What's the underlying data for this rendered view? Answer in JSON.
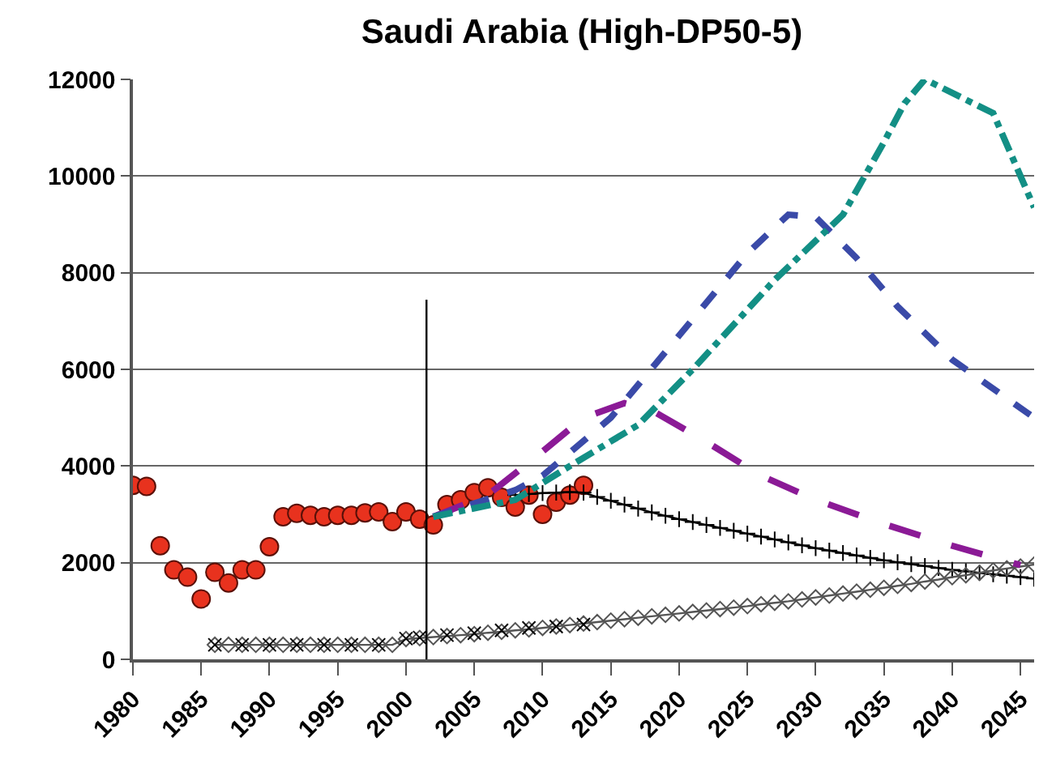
{
  "chart_data": {
    "type": "line",
    "title": "Saudi Arabia (High-DP50-5)",
    "xlim": [
      1980,
      2046
    ],
    "xticks": [
      1980,
      1985,
      1990,
      1995,
      2000,
      2005,
      2010,
      2015,
      2020,
      2025,
      2030,
      2035,
      2040,
      2045
    ],
    "ylim": [
      0,
      12000
    ],
    "yticks": [
      0,
      2000,
      4000,
      6000,
      8000,
      10000,
      12000
    ],
    "grid": "y",
    "ref_lines": [
      {
        "axis": "x",
        "value": 2001.5,
        "color": "#000000"
      }
    ],
    "series": [
      {
        "type": "scatter",
        "marker": "circle",
        "color": "#e8321e",
        "x": [
          1980,
          1981,
          1982,
          1983,
          1984,
          1985,
          1986,
          1987,
          1988,
          1989,
          1990,
          1991,
          1992,
          1993,
          1994,
          1995,
          1996,
          1997,
          1998,
          1999,
          2000,
          2001,
          2002,
          2003,
          2004,
          2005,
          2006,
          2007,
          2008,
          2009,
          2010,
          2011,
          2012,
          2013
        ],
        "values": [
          3600,
          3580,
          2350,
          1850,
          1700,
          1250,
          1800,
          1580,
          1850,
          1850,
          2330,
          2950,
          3020,
          2980,
          2950,
          2980,
          2980,
          3030,
          3050,
          2850,
          3050,
          2900,
          2780,
          3200,
          3300,
          3450,
          3550,
          3350,
          3150,
          3400,
          3000,
          3250,
          3400,
          3600
        ]
      },
      {
        "marker": "cross",
        "line_style": "solid",
        "color": "#000000",
        "x": [
          2008,
          2009,
          2010,
          2011,
          2012,
          2013,
          2014,
          2015,
          2016,
          2017,
          2018,
          2019,
          2020,
          2021,
          2022,
          2023,
          2024,
          2025,
          2026,
          2027,
          2028,
          2029,
          2030,
          2031,
          2032,
          2033,
          2034,
          2035,
          2036,
          2037,
          2038,
          2039,
          2040,
          2041,
          2042,
          2043,
          2044,
          2045,
          2046
        ],
        "values": [
          3400,
          3420,
          3440,
          3450,
          3460,
          3450,
          3360,
          3280,
          3200,
          3120,
          3040,
          2970,
          2900,
          2840,
          2780,
          2720,
          2660,
          2600,
          2540,
          2480,
          2420,
          2360,
          2300,
          2250,
          2200,
          2150,
          2100,
          2050,
          2010,
          1970,
          1930,
          1890,
          1850,
          1820,
          1790,
          1760,
          1730,
          1700,
          1670
        ]
      },
      {
        "marker": "diamond",
        "line_style": "solid",
        "color": "#555555",
        "x": [
          1986,
          1987,
          1988,
          1989,
          1990,
          1991,
          1992,
          1993,
          1994,
          1995,
          1996,
          1997,
          1998,
          1999,
          2000,
          2001,
          2002,
          2003,
          2004,
          2005,
          2006,
          2007,
          2008,
          2009,
          2010,
          2011,
          2012,
          2013,
          2014,
          2015,
          2016,
          2017,
          2018,
          2019,
          2020,
          2021,
          2022,
          2023,
          2024,
          2025,
          2026,
          2027,
          2028,
          2029,
          2030,
          2031,
          2032,
          2033,
          2034,
          2035,
          2036,
          2037,
          2038,
          2039,
          2040,
          2041,
          2042,
          2043,
          2044,
          2045,
          2046
        ],
        "values": [
          300,
          300,
          300,
          300,
          300,
          300,
          300,
          300,
          300,
          300,
          300,
          300,
          300,
          300,
          420,
          440,
          460,
          480,
          500,
          520,
          550,
          570,
          600,
          620,
          650,
          680,
          710,
          740,
          770,
          800,
          830,
          860,
          890,
          920,
          950,
          980,
          1010,
          1040,
          1070,
          1100,
          1140,
          1170,
          1200,
          1240,
          1280,
          1320,
          1360,
          1400,
          1440,
          1480,
          1520,
          1560,
          1610,
          1650,
          1700,
          1740,
          1790,
          1840,
          1880,
          1920,
          1960
        ]
      },
      {
        "type": "scatter",
        "marker": "x",
        "color": "#000000",
        "x": [
          1986,
          1988,
          1990,
          1992,
          1994,
          1996,
          1998,
          2000,
          2001,
          2003,
          2005,
          2007,
          2009,
          2011,
          2013
        ],
        "values": [
          300,
          300,
          300,
          300,
          300,
          300,
          300,
          430,
          450,
          500,
          540,
          600,
          650,
          680,
          720
        ]
      },
      {
        "marker": "none",
        "line_style": "dashed",
        "color": "#8b1a96",
        "x": [
          2002,
          2006,
          2010,
          2013,
          2016,
          2018,
          2022,
          2026,
          2030,
          2035,
          2040,
          2045
        ],
        "values": [
          2950,
          3400,
          4300,
          5000,
          5300,
          5150,
          4500,
          3800,
          3300,
          2800,
          2350,
          1950
        ]
      },
      {
        "marker": "none",
        "line_style": "dashed",
        "color": "#3a4aa8",
        "x": [
          2002,
          2008,
          2010,
          2015,
          2020,
          2025,
          2028,
          2030,
          2033,
          2036,
          2040,
          2046
        ],
        "values": [
          2950,
          3500,
          3800,
          5000,
          6700,
          8400,
          9200,
          9150,
          8300,
          7300,
          6200,
          5000
        ]
      },
      {
        "marker": "none",
        "line_style": "dashed",
        "color": "#138f85",
        "x": [
          2002,
          2008,
          2012,
          2017,
          2021,
          2027,
          2032,
          2035,
          2036.5,
          2038,
          2043,
          2046
        ],
        "values": [
          2950,
          3300,
          4000,
          4850,
          6000,
          7850,
          9200,
          10700,
          11500,
          12000,
          11300,
          9350
        ]
      }
    ]
  }
}
